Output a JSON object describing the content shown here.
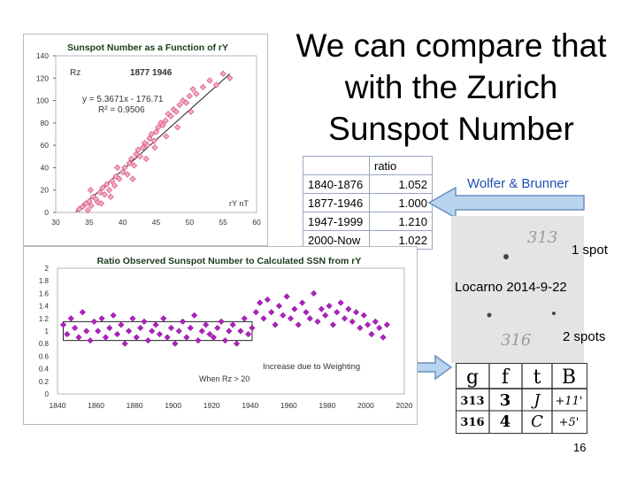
{
  "slide": {
    "title": "We can compare that with the Zurich Sunspot Number",
    "wolfer_label": "Wolfer & Brunner",
    "one_spot": "1 spot",
    "locarno": "Locarno 2014-9-22",
    "two_spots": "2 spots",
    "page_number": "16",
    "photo_number_1": "313",
    "photo_number_2": "316"
  },
  "ratio_table": {
    "header": "ratio",
    "rows": [
      {
        "period": "1840-1876",
        "ratio": "1.052"
      },
      {
        "period": "1877-1946",
        "ratio": "1.000"
      },
      {
        "period": "1947-1999",
        "ratio": "1.210"
      },
      {
        "period": "2000-Now",
        "ratio": "1.022"
      }
    ]
  },
  "ledger": {
    "headers": [
      "g",
      "f",
      "t",
      "B"
    ],
    "rows": [
      [
        "313",
        "3",
        "J",
        "+11'"
      ],
      [
        "316",
        "4",
        "C",
        "+5'"
      ]
    ]
  },
  "colors": {
    "points": "#f4a8c0",
    "points_edge": "#d0486f",
    "purple": "#b020c0",
    "arrow_fill": "#b8d4ee",
    "arrow_edge": "#6a90c0",
    "title_green": "#1b3b1b",
    "wolfer": "#1e4fb0"
  },
  "chart_data": [
    {
      "type": "scatter",
      "title": "Sunspot Number as a Function of rY",
      "series_label": "Rz",
      "period_label": "1877 1946",
      "equation": "y = 5.3671x - 176.71",
      "r2": "R² = 0.9506",
      "xlabel": "rY nT",
      "xlim": [
        30,
        60
      ],
      "ylim": [
        0,
        140
      ],
      "xticks": [
        30,
        35,
        40,
        45,
        50,
        55,
        60
      ],
      "yticks": [
        0,
        20,
        40,
        60,
        80,
        100,
        120,
        140
      ],
      "fit": {
        "slope": 5.3671,
        "intercept": -176.71
      },
      "points": [
        [
          33.5,
          3
        ],
        [
          34,
          5
        ],
        [
          34.5,
          8
        ],
        [
          34.8,
          2
        ],
        [
          35,
          10
        ],
        [
          35.3,
          6
        ],
        [
          35.6,
          14
        ],
        [
          36,
          12
        ],
        [
          36.3,
          9
        ],
        [
          36.6,
          18
        ],
        [
          37,
          22
        ],
        [
          37.3,
          16
        ],
        [
          37.6,
          25
        ],
        [
          38,
          20
        ],
        [
          38.4,
          28
        ],
        [
          38.8,
          24
        ],
        [
          39,
          32
        ],
        [
          39.5,
          30
        ],
        [
          40,
          36
        ],
        [
          40.3,
          40
        ],
        [
          40.7,
          34
        ],
        [
          41,
          44
        ],
        [
          41.3,
          48
        ],
        [
          41.7,
          42
        ],
        [
          42,
          52
        ],
        [
          42.3,
          56
        ],
        [
          42.6,
          50
        ],
        [
          43,
          58
        ],
        [
          43.3,
          62
        ],
        [
          43.7,
          60
        ],
        [
          44,
          66
        ],
        [
          44.3,
          70
        ],
        [
          44.7,
          64
        ],
        [
          45,
          72
        ],
        [
          45.3,
          76
        ],
        [
          45.7,
          80
        ],
        [
          46,
          78
        ],
        [
          46.4,
          82
        ],
        [
          46.8,
          88
        ],
        [
          47.2,
          86
        ],
        [
          47.6,
          92
        ],
        [
          48,
          90
        ],
        [
          48.5,
          96
        ],
        [
          49,
          100
        ],
        [
          49.5,
          98
        ],
        [
          50,
          104
        ],
        [
          50.5,
          110
        ],
        [
          51,
          106
        ],
        [
          52,
          112
        ],
        [
          53,
          118
        ],
        [
          54,
          114
        ],
        [
          55,
          124
        ],
        [
          56,
          120
        ],
        [
          35.2,
          20
        ],
        [
          36.8,
          8
        ],
        [
          38.2,
          14
        ],
        [
          39.2,
          40
        ],
        [
          41.5,
          30
        ],
        [
          43.5,
          48
        ],
        [
          44.8,
          58
        ],
        [
          46.5,
          68
        ],
        [
          48.2,
          76
        ],
        [
          50.2,
          90
        ]
      ]
    },
    {
      "type": "scatter",
      "title": "Ratio Observed Sunspot Number to Calculated SSN from rY",
      "annotation": "Increase due to Weighting",
      "annotation2": "When Rz > 20",
      "xlim": [
        1840,
        2020
      ],
      "ylim": [
        0,
        2
      ],
      "xticks": [
        1840,
        1860,
        1880,
        1900,
        1920,
        1940,
        1960,
        1980,
        2000,
        2020
      ],
      "yticks": [
        "0",
        "0.2",
        "0.4",
        "0.6",
        "0.8",
        "1",
        "1.2",
        "1.4",
        "1.6",
        "1.8",
        "2"
      ],
      "reference_box": {
        "x": [
          1843,
          1941
        ],
        "y": [
          0.85,
          1.15
        ]
      },
      "points": [
        [
          1843,
          1.1
        ],
        [
          1845,
          0.95
        ],
        [
          1847,
          1.2
        ],
        [
          1849,
          1.05
        ],
        [
          1851,
          0.9
        ],
        [
          1853,
          1.3
        ],
        [
          1855,
          1.0
        ],
        [
          1857,
          0.85
        ],
        [
          1859,
          1.15
        ],
        [
          1861,
          1.0
        ],
        [
          1863,
          1.2
        ],
        [
          1865,
          0.9
        ],
        [
          1867,
          1.05
        ],
        [
          1869,
          1.25
        ],
        [
          1871,
          0.95
        ],
        [
          1873,
          1.1
        ],
        [
          1875,
          0.8
        ],
        [
          1877,
          1.0
        ],
        [
          1879,
          1.2
        ],
        [
          1881,
          0.9
        ],
        [
          1883,
          1.05
        ],
        [
          1885,
          1.15
        ],
        [
          1887,
          0.85
        ],
        [
          1889,
          1.0
        ],
        [
          1891,
          1.1
        ],
        [
          1893,
          0.95
        ],
        [
          1895,
          1.2
        ],
        [
          1897,
          0.9
        ],
        [
          1899,
          1.05
        ],
        [
          1901,
          0.8
        ],
        [
          1903,
          1.0
        ],
        [
          1905,
          1.15
        ],
        [
          1907,
          0.9
        ],
        [
          1909,
          1.05
        ],
        [
          1911,
          1.25
        ],
        [
          1913,
          0.85
        ],
        [
          1915,
          1.0
        ],
        [
          1917,
          1.1
        ],
        [
          1919,
          0.95
        ],
        [
          1921,
          0.9
        ],
        [
          1923,
          1.05
        ],
        [
          1925,
          1.15
        ],
        [
          1927,
          0.85
        ],
        [
          1929,
          1.0
        ],
        [
          1931,
          1.1
        ],
        [
          1933,
          0.8
        ],
        [
          1935,
          1.0
        ],
        [
          1937,
          1.2
        ],
        [
          1939,
          0.95
        ],
        [
          1941,
          1.05
        ],
        [
          1943,
          1.3
        ],
        [
          1945,
          1.45
        ],
        [
          1947,
          1.2
        ],
        [
          1949,
          1.5
        ],
        [
          1951,
          1.3
        ],
        [
          1953,
          1.1
        ],
        [
          1955,
          1.4
        ],
        [
          1957,
          1.25
        ],
        [
          1959,
          1.55
        ],
        [
          1961,
          1.2
        ],
        [
          1963,
          1.35
        ],
        [
          1965,
          1.1
        ],
        [
          1967,
          1.45
        ],
        [
          1969,
          1.3
        ],
        [
          1971,
          1.2
        ],
        [
          1973,
          1.6
        ],
        [
          1975,
          1.15
        ],
        [
          1977,
          1.35
        ],
        [
          1979,
          1.25
        ],
        [
          1981,
          1.4
        ],
        [
          1983,
          1.1
        ],
        [
          1985,
          1.3
        ],
        [
          1987,
          1.45
        ],
        [
          1989,
          1.2
        ],
        [
          1991,
          1.35
        ],
        [
          1993,
          1.15
        ],
        [
          1995,
          1.3
        ],
        [
          1997,
          1.05
        ],
        [
          1999,
          1.25
        ],
        [
          2001,
          1.1
        ],
        [
          2003,
          0.95
        ],
        [
          2005,
          1.15
        ],
        [
          2007,
          1.05
        ],
        [
          2009,
          0.9
        ],
        [
          2011,
          1.1
        ]
      ]
    }
  ]
}
